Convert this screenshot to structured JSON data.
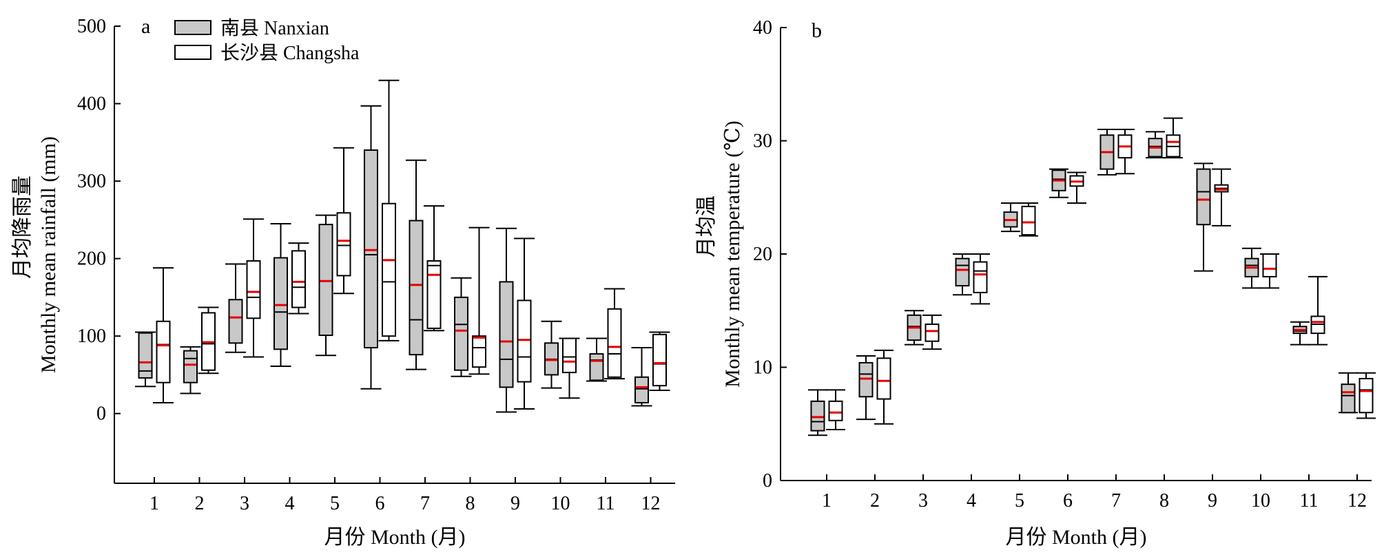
{
  "chart_data": [
    {
      "type": "box",
      "panel_label": "a",
      "title": "",
      "xlabel": "月份 Month (月)",
      "ylabel": "Monthly mean rainfall (mm)",
      "ylabel_cn": "月均降雨量",
      "ylim": [
        -90,
        500
      ],
      "yticks": [
        0,
        100,
        200,
        300,
        400,
        500
      ],
      "categories": [
        "1",
        "2",
        "3",
        "4",
        "5",
        "6",
        "7",
        "8",
        "9",
        "10",
        "11",
        "12"
      ],
      "legend_position": "top-left",
      "series": [
        {
          "name": "南县 Nanxian",
          "fill": "#c8c8c8",
          "boxes": [
            {
              "min": 35,
              "q1": 46,
              "median": 55,
              "q3": 104,
              "max": 105,
              "mean": 66
            },
            {
              "min": 26,
              "q1": 40,
              "median": 71,
              "q3": 81,
              "max": 86,
              "mean": 63
            },
            {
              "min": 79,
              "q1": 91,
              "median": 124,
              "q3": 147,
              "max": 193,
              "mean": 124
            },
            {
              "min": 61,
              "q1": 83,
              "median": 131,
              "q3": 201,
              "max": 245,
              "mean": 140
            },
            {
              "min": 75,
              "q1": 101,
              "median": 171,
              "q3": 244,
              "max": 256,
              "mean": 171
            },
            {
              "min": 32,
              "q1": 85,
              "median": 205,
              "q3": 340,
              "max": 397,
              "mean": 211
            },
            {
              "min": 57,
              "q1": 76,
              "median": 121,
              "q3": 249,
              "max": 327,
              "mean": 166
            },
            {
              "min": 48,
              "q1": 56,
              "median": 115,
              "q3": 150,
              "max": 175,
              "mean": 107
            },
            {
              "min": 2,
              "q1": 34,
              "median": 70,
              "q3": 170,
              "max": 239,
              "mean": 93
            },
            {
              "min": 33,
              "q1": 50,
              "median": 70,
              "q3": 91,
              "max": 119,
              "mean": 69
            },
            {
              "min": 42,
              "q1": 43,
              "median": 69,
              "q3": 77,
              "max": 97,
              "mean": 68
            },
            {
              "min": 10,
              "q1": 14,
              "median": 32,
              "q3": 47,
              "max": 85,
              "mean": 34
            }
          ]
        },
        {
          "name": "长沙县 Changsha",
          "fill": "#ffffff",
          "boxes": [
            {
              "min": 14,
              "q1": 40,
              "median": 89,
              "q3": 119,
              "max": 188,
              "mean": 88
            },
            {
              "min": 52,
              "q1": 56,
              "median": 90,
              "q3": 130,
              "max": 137,
              "mean": 92
            },
            {
              "min": 73,
              "q1": 123,
              "median": 150,
              "q3": 197,
              "max": 251,
              "mean": 157
            },
            {
              "min": 129,
              "q1": 137,
              "median": 163,
              "q3": 210,
              "max": 220,
              "mean": 170
            },
            {
              "min": 155,
              "q1": 178,
              "median": 217,
              "q3": 259,
              "max": 343,
              "mean": 223
            },
            {
              "min": 94,
              "q1": 100,
              "median": 170,
              "q3": 271,
              "max": 430,
              "mean": 198
            },
            {
              "min": 107,
              "q1": 110,
              "median": 191,
              "q3": 197,
              "max": 268,
              "mean": 179
            },
            {
              "min": 51,
              "q1": 60,
              "median": 85,
              "q3": 100,
              "max": 240,
              "mean": 98
            },
            {
              "min": 6,
              "q1": 41,
              "median": 73,
              "q3": 146,
              "max": 226,
              "mean": 95
            },
            {
              "min": 20,
              "q1": 53,
              "median": 73,
              "q3": 97,
              "max": 97,
              "mean": 67
            },
            {
              "min": 45,
              "q1": 47,
              "median": 77,
              "q3": 135,
              "max": 161,
              "mean": 86
            },
            {
              "min": 30,
              "q1": 36,
              "median": 64,
              "q3": 102,
              "max": 105,
              "mean": 65
            }
          ]
        }
      ]
    },
    {
      "type": "box",
      "panel_label": "b",
      "title": "",
      "xlabel": "月份 Month (月)",
      "ylabel": "Monthly mean temperature (℃)",
      "ylabel_cn": "月均温",
      "ylim": [
        0,
        40
      ],
      "yticks": [
        0,
        10,
        20,
        30,
        40
      ],
      "categories": [
        "1",
        "2",
        "3",
        "4",
        "5",
        "6",
        "7",
        "8",
        "9",
        "10",
        "11",
        "12"
      ],
      "series": [
        {
          "name": "南县 Nanxian",
          "fill": "#c8c8c8",
          "boxes": [
            {
              "min": 4.0,
              "q1": 4.4,
              "median": 5.2,
              "q3": 7.0,
              "max": 8.0,
              "mean": 5.6
            },
            {
              "min": 5.4,
              "q1": 7.4,
              "median": 9.4,
              "q3": 10.4,
              "max": 11.0,
              "mean": 9.0
            },
            {
              "min": 12.0,
              "q1": 12.4,
              "median": 13.6,
              "q3": 14.6,
              "max": 15.0,
              "mean": 13.5
            },
            {
              "min": 16.4,
              "q1": 17.2,
              "median": 19.0,
              "q3": 19.6,
              "max": 20.0,
              "mean": 18.6
            },
            {
              "min": 22.0,
              "q1": 22.4,
              "median": 23.0,
              "q3": 23.7,
              "max": 24.5,
              "mean": 23.0
            },
            {
              "min": 25.0,
              "q1": 25.6,
              "median": 26.6,
              "q3": 27.4,
              "max": 27.5,
              "mean": 26.5
            },
            {
              "min": 27.0,
              "q1": 27.5,
              "median": 29.0,
              "q3": 30.5,
              "max": 31.0,
              "mean": 29.0
            },
            {
              "min": 28.5,
              "q1": 28.6,
              "median": 29.5,
              "q3": 30.2,
              "max": 30.8,
              "mean": 29.4
            },
            {
              "min": 18.5,
              "q1": 22.6,
              "median": 25.5,
              "q3": 27.5,
              "max": 28.0,
              "mean": 24.8
            },
            {
              "min": 17.0,
              "q1": 18.0,
              "median": 19.0,
              "q3": 19.6,
              "max": 20.5,
              "mean": 18.8
            },
            {
              "min": 12.0,
              "q1": 13.0,
              "median": 13.2,
              "q3": 13.6,
              "max": 14.0,
              "mean": 13.3
            },
            {
              "min": 6.0,
              "q1": 6.0,
              "median": 7.5,
              "q3": 8.5,
              "max": 9.5,
              "mean": 7.8
            }
          ]
        },
        {
          "name": "长沙县 Changsha",
          "fill": "#ffffff",
          "boxes": [
            {
              "min": 4.5,
              "q1": 5.3,
              "median": 6.0,
              "q3": 7.0,
              "max": 8.0,
              "mean": 6.0
            },
            {
              "min": 5.0,
              "q1": 7.2,
              "median": 8.8,
              "q3": 10.8,
              "max": 11.5,
              "mean": 8.8
            },
            {
              "min": 11.6,
              "q1": 12.3,
              "median": 13.2,
              "q3": 13.8,
              "max": 14.6,
              "mean": 13.2
            },
            {
              "min": 15.6,
              "q1": 16.6,
              "median": 18.5,
              "q3": 19.3,
              "max": 20.0,
              "mean": 18.2
            },
            {
              "min": 21.6,
              "q1": 21.7,
              "median": 22.8,
              "q3": 24.2,
              "max": 24.5,
              "mean": 22.8
            },
            {
              "min": 24.5,
              "q1": 26.0,
              "median": 26.4,
              "q3": 26.9,
              "max": 27.2,
              "mean": 26.4
            },
            {
              "min": 27.1,
              "q1": 28.5,
              "median": 29.5,
              "q3": 30.5,
              "max": 31.0,
              "mean": 29.5
            },
            {
              "min": 28.5,
              "q1": 28.6,
              "median": 29.5,
              "q3": 30.5,
              "max": 32.0,
              "mean": 29.9
            },
            {
              "min": 22.5,
              "q1": 25.5,
              "median": 25.8,
              "q3": 26.1,
              "max": 27.5,
              "mean": 25.7
            },
            {
              "min": 17.0,
              "q1": 18.0,
              "median": 18.7,
              "q3": 20.0,
              "max": 20.0,
              "mean": 18.7
            },
            {
              "min": 12.0,
              "q1": 13.0,
              "median": 13.8,
              "q3": 14.5,
              "max": 18.0,
              "mean": 14.0
            },
            {
              "min": 5.5,
              "q1": 6.0,
              "median": 8.0,
              "q3": 9.0,
              "max": 9.5,
              "mean": 7.9
            }
          ]
        }
      ]
    }
  ],
  "colors": {
    "mean_marker": "#e60000",
    "nanxian_fill": "#c8c8c8",
    "changsha_fill": "#ffffff",
    "stroke": "#000000"
  }
}
